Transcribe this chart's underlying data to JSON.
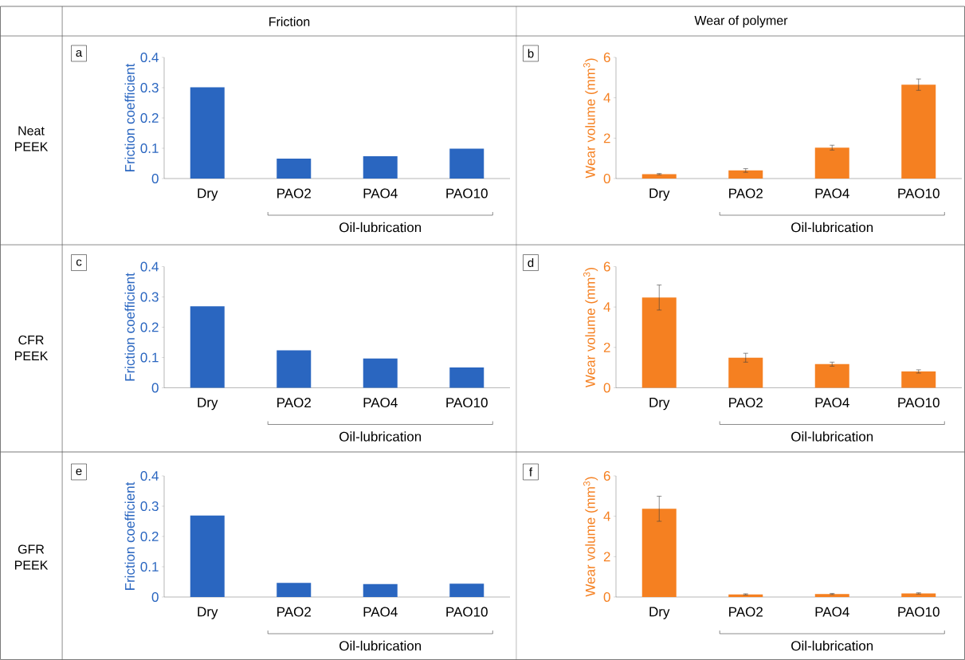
{
  "chart_data": [
    {
      "type": "bar",
      "title": "a",
      "categories": [
        "Dry",
        "PAO2",
        "PAO4",
        "PAO10"
      ],
      "values": [
        0.301,
        0.066,
        0.074,
        0.099
      ],
      "color": "#2a66c0",
      "ylabel": "Friction coefficient",
      "ylim": [
        0,
        0.4
      ],
      "yticks": [
        0,
        0.1,
        0.2,
        0.3,
        0.4
      ],
      "annotations": [
        "Oil-lubrication",
        "Friction",
        "Neat PEEK"
      ]
    },
    {
      "type": "bar",
      "title": "b",
      "categories": [
        "Dry",
        "PAO2",
        "PAO4",
        "PAO10"
      ],
      "values": [
        0.22,
        0.4,
        1.53,
        4.65
      ],
      "errors": [
        0.03,
        0.09,
        0.12,
        0.28
      ],
      "color": "#f58021",
      "ylabel": "Wear volume (mm$^{3}$)",
      "ylim": [
        0,
        6
      ],
      "yticks": [
        0,
        2,
        4,
        6
      ],
      "annotations": [
        "Oil-lubrication",
        "Wear of polymer"
      ]
    },
    {
      "type": "bar",
      "title": "c",
      "categories": [
        "Dry",
        "PAO2",
        "PAO4",
        "PAO10"
      ],
      "values": [
        0.269,
        0.124,
        0.097,
        0.067
      ],
      "color": "#2a66c0",
      "ylabel": "Friction coefficient",
      "ylim": [
        0,
        0.4
      ],
      "yticks": [
        0,
        0.1,
        0.2,
        0.3,
        0.4
      ],
      "annotations": [
        "Oil-lubrication",
        "CFR PEEK"
      ]
    },
    {
      "type": "bar",
      "title": "d",
      "categories": [
        "Dry",
        "PAO2",
        "PAO4",
        "PAO10"
      ],
      "values": [
        4.47,
        1.49,
        1.17,
        0.81
      ],
      "errors": [
        0.62,
        0.22,
        0.1,
        0.08
      ],
      "color": "#f58021",
      "ylabel": "Wear volume (mm$^{3}$)",
      "ylim": [
        0,
        6
      ],
      "yticks": [
        0,
        2,
        4,
        6
      ],
      "annotations": [
        "Oil-lubrication"
      ]
    },
    {
      "type": "bar",
      "title": "e",
      "categories": [
        "Dry",
        "PAO2",
        "PAO4",
        "PAO10"
      ],
      "values": [
        0.269,
        0.047,
        0.043,
        0.044
      ],
      "color": "#2a66c0",
      "ylabel": "Friction coefficient",
      "ylim": [
        0,
        0.4
      ],
      "yticks": [
        0,
        0.1,
        0.2,
        0.3,
        0.4
      ],
      "annotations": [
        "Oil-lubrication",
        "GFR PEEK"
      ]
    },
    {
      "type": "bar",
      "title": "f",
      "categories": [
        "Dry",
        "PAO2",
        "PAO4",
        "PAO10"
      ],
      "values": [
        4.37,
        0.13,
        0.15,
        0.18
      ],
      "errors": [
        0.62,
        0.03,
        0.03,
        0.03
      ],
      "color": "#f58021",
      "ylabel": "Wear volume (mm$^{3}$)",
      "ylim": [
        0,
        6
      ],
      "yticks": [
        0,
        2,
        4,
        6
      ],
      "annotations": [
        "Oil-lubrication"
      ]
    }
  ]
}
